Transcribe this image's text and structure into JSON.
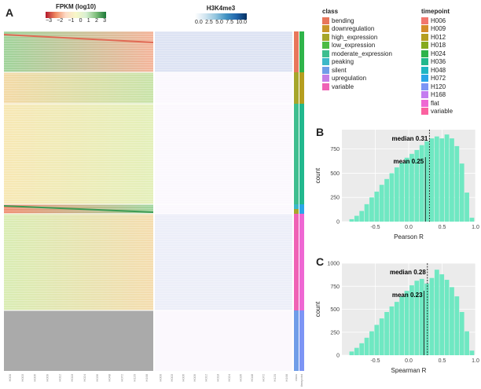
{
  "panel_labels": {
    "a": "A",
    "b": "B",
    "c": "C"
  },
  "colorbar_fpkm": {
    "title": "FPKM (log10)",
    "ticks": [
      "−3",
      "−2",
      "−1",
      "0",
      "1",
      "2",
      "3"
    ],
    "colors": [
      "#b2182b",
      "#ef8a62",
      "#fddbc7",
      "#f7f7c7",
      "#d9f0d3",
      "#7fbf7b",
      "#1b7837"
    ]
  },
  "colorbar_h3k4me3": {
    "title": "H3K4me3",
    "ticks": [
      "0.0",
      "2.5",
      "5.0",
      "7.5",
      "10.0"
    ],
    "colors": [
      "#ffffff",
      "#d1e5f0",
      "#92c5de",
      "#4393c3",
      "#2166ac",
      "#053061"
    ]
  },
  "class_legend": {
    "title": "class",
    "items": [
      {
        "label": "bending",
        "color": "#e8765b"
      },
      {
        "label": "downregulation",
        "color": "#c9962a"
      },
      {
        "label": "high_expression",
        "color": "#a6a62a"
      },
      {
        "label": "low_expression",
        "color": "#4dbb44"
      },
      {
        "label": "moderate_expression",
        "color": "#3ebe8f"
      },
      {
        "label": "peaking",
        "color": "#3cb8c8"
      },
      {
        "label": "silent",
        "color": "#6f9de8"
      },
      {
        "label": "upregulation",
        "color": "#c57ee6"
      },
      {
        "label": "variable",
        "color": "#ef62b5"
      }
    ]
  },
  "timepoint_legend": {
    "title": "timepoint",
    "items": [
      {
        "label": "H006",
        "color": "#f2766d"
      },
      {
        "label": "H009",
        "color": "#d58c2a"
      },
      {
        "label": "H012",
        "color": "#b59e1f"
      },
      {
        "label": "H018",
        "color": "#85aa1f"
      },
      {
        "label": "H024",
        "color": "#2fb44a"
      },
      {
        "label": "H036",
        "color": "#22b88d"
      },
      {
        "label": "H048",
        "color": "#1fb6c2"
      },
      {
        "label": "H072",
        "color": "#2aa6e8"
      },
      {
        "label": "H120",
        "color": "#7d95f5"
      },
      {
        "label": "H168",
        "color": "#c47cf0"
      },
      {
        "label": "flat",
        "color": "#ee67d3"
      },
      {
        "label": "variable",
        "color": "#fb61a0"
      }
    ]
  },
  "heatmap": {
    "columns_fpkm": [
      "H000",
      "H003",
      "H006",
      "H009",
      "H012",
      "H018",
      "H024",
      "H036",
      "H048",
      "H072",
      "H120",
      "H168"
    ],
    "columns_h3k4me3": [
      "H000",
      "H003",
      "H006",
      "H009",
      "H012",
      "H018",
      "H024",
      "H036",
      "H048",
      "H072",
      "H120",
      "H168"
    ],
    "annotation_columns": [
      "class",
      "timepoint"
    ]
  },
  "chart_data": [
    {
      "type": "bar",
      "panel": "B",
      "xlabel": "Pearson R",
      "ylabel": "count",
      "xlim": [
        -1.0,
        1.0
      ],
      "ylim": [
        0,
        950
      ],
      "xticks": [
        "-0.5",
        "0.0",
        "0.5",
        "1.0"
      ],
      "yticks": [
        "0",
        "250",
        "500",
        "750"
      ],
      "bin_centers": [
        -0.85,
        -0.775,
        -0.7,
        -0.625,
        -0.55,
        -0.475,
        -0.4,
        -0.325,
        -0.25,
        -0.175,
        -0.1,
        -0.025,
        0.05,
        0.125,
        0.2,
        0.275,
        0.35,
        0.425,
        0.5,
        0.575,
        0.65,
        0.725,
        0.8,
        0.875,
        0.95
      ],
      "values": [
        25,
        60,
        110,
        180,
        250,
        310,
        380,
        440,
        500,
        560,
        610,
        660,
        700,
        740,
        790,
        830,
        860,
        880,
        860,
        900,
        860,
        780,
        600,
        300,
        40
      ],
      "annotations": [
        {
          "label": "median 0.31",
          "value": 0.31
        },
        {
          "label": "mean 0.25",
          "value": 0.25
        }
      ]
    },
    {
      "type": "bar",
      "panel": "C",
      "xlabel": "Spearman R",
      "ylabel": "count",
      "xlim": [
        -1.0,
        1.0
      ],
      "ylim": [
        0,
        1000
      ],
      "xticks": [
        "-0.5",
        "0.0",
        "0.5",
        "1.0"
      ],
      "yticks": [
        "0",
        "250",
        "500",
        "750",
        "1000"
      ],
      "bin_centers": [
        -0.85,
        -0.775,
        -0.7,
        -0.625,
        -0.55,
        -0.475,
        -0.4,
        -0.325,
        -0.25,
        -0.175,
        -0.1,
        -0.025,
        0.05,
        0.125,
        0.2,
        0.275,
        0.35,
        0.425,
        0.5,
        0.575,
        0.65,
        0.725,
        0.8,
        0.875,
        0.95
      ],
      "values": [
        40,
        80,
        130,
        190,
        260,
        330,
        400,
        470,
        530,
        580,
        640,
        700,
        760,
        810,
        830,
        780,
        840,
        930,
        880,
        820,
        740,
        640,
        470,
        260,
        50
      ],
      "annotations": [
        {
          "label": "median 0.28",
          "value": 0.28
        },
        {
          "label": "mean 0.23",
          "value": 0.23
        }
      ]
    }
  ]
}
